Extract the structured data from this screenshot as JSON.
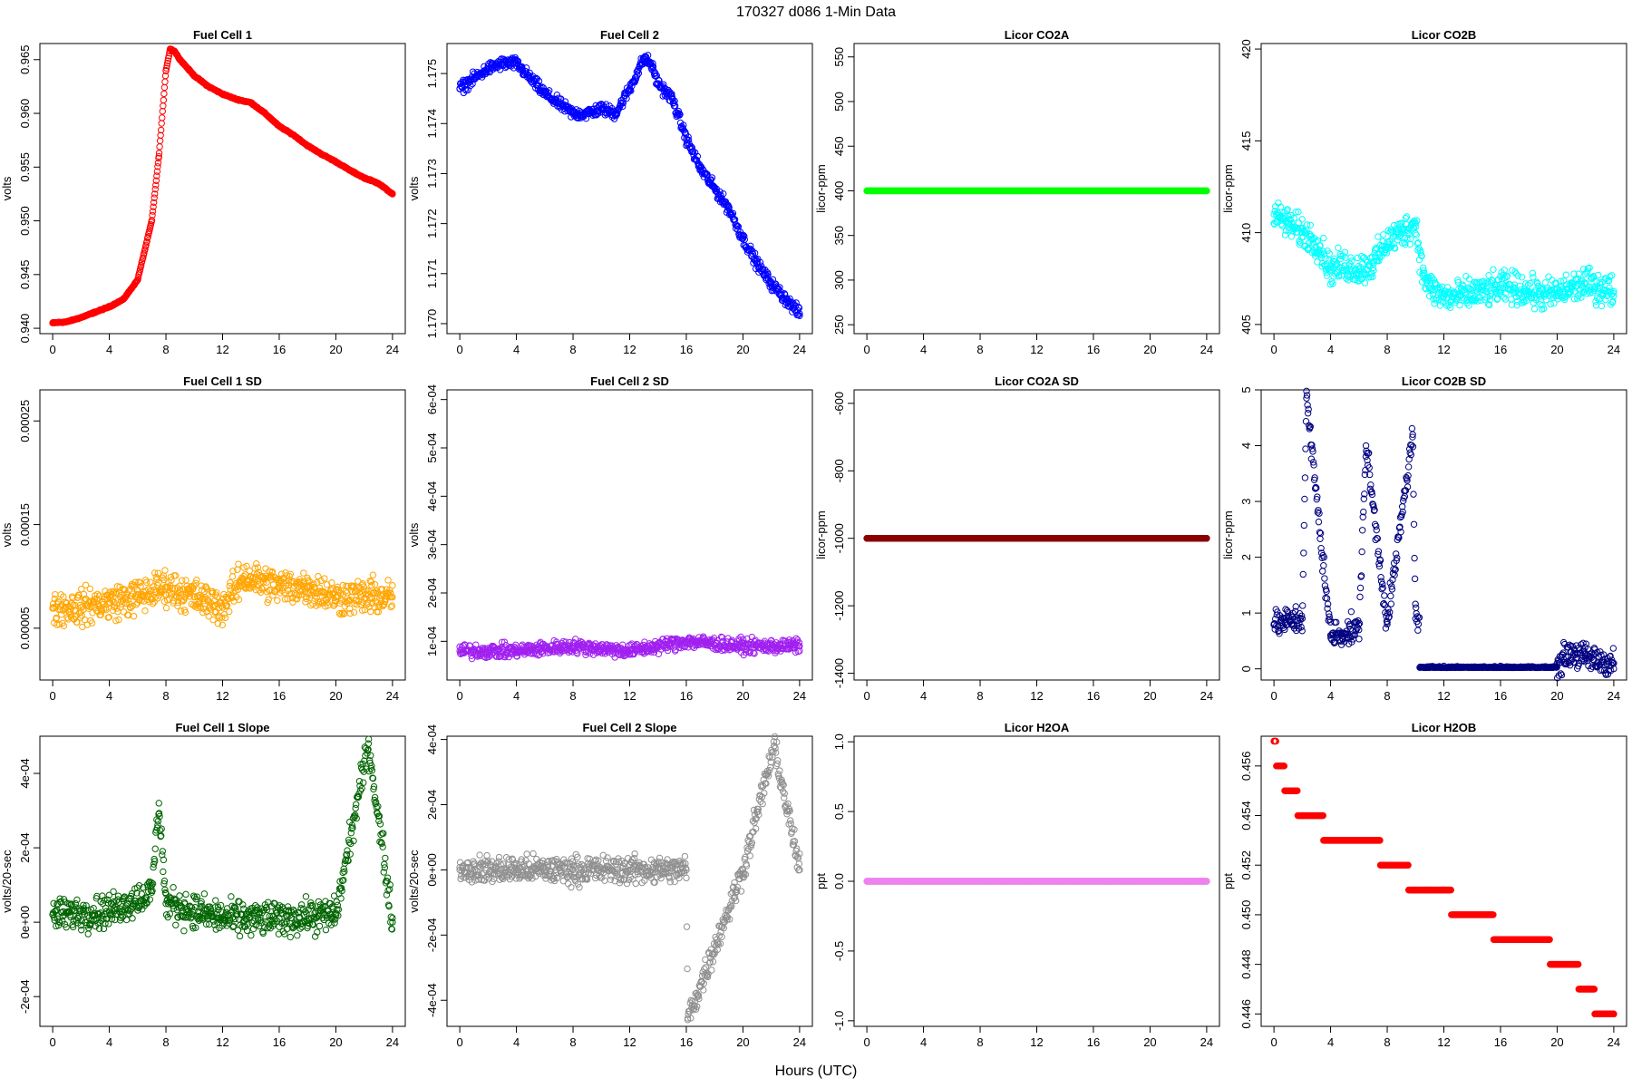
{
  "title": "170327   d086   1-Min Data",
  "xlabel": "Hours (UTC)",
  "chart_data": [
    {
      "key": "fc1",
      "type": "scatter",
      "title": "Fuel Cell 1",
      "ylabel": "volts",
      "color": "#ff0000",
      "xlim": [
        0,
        24
      ],
      "xticks": [
        "0",
        "4",
        "8",
        "12",
        "16",
        "20",
        "24"
      ],
      "ylim": [
        0.9395,
        0.9665
      ],
      "yticks": [
        "0.940",
        "0.945",
        "0.950",
        "0.955",
        "0.960",
        "0.965"
      ],
      "x": [
        0,
        1,
        2,
        3,
        4,
        5,
        6,
        7,
        7.5,
        8,
        8.3,
        8.6,
        9,
        10,
        11,
        12,
        13,
        14,
        15,
        16,
        17,
        18,
        19,
        20,
        21,
        22,
        23,
        24
      ],
      "y": [
        0.9405,
        0.9406,
        0.941,
        0.9415,
        0.942,
        0.9427,
        0.9445,
        0.95,
        0.956,
        0.964,
        0.966,
        0.9658,
        0.965,
        0.9635,
        0.9625,
        0.9618,
        0.9613,
        0.961,
        0.96,
        0.9588,
        0.958,
        0.957,
        0.9562,
        0.9555,
        0.9547,
        0.954,
        0.9535,
        0.9525
      ]
    },
    {
      "key": "fc2",
      "type": "scatter",
      "title": "Fuel Cell 2",
      "ylabel": "volts",
      "color": "#0000ff",
      "xlim": [
        0,
        24
      ],
      "xticks": [
        "0",
        "4",
        "8",
        "12",
        "16",
        "20",
        "24"
      ],
      "ylim": [
        1.1698,
        1.1756
      ],
      "yticks": [
        "1.170",
        "1.171",
        "1.172",
        "1.173",
        "1.174",
        "1.175"
      ],
      "x": [
        0,
        1,
        2,
        3,
        4,
        5,
        6,
        7,
        8,
        9,
        10,
        11,
        12,
        13,
        13.5,
        14,
        15,
        16,
        17,
        18,
        19,
        20,
        21,
        22,
        23,
        24
      ],
      "y": [
        1.1747,
        1.1749,
        1.1751,
        1.1752,
        1.1752,
        1.1749,
        1.1746,
        1.1744,
        1.1742,
        1.1742,
        1.1743,
        1.1742,
        1.1747,
        1.1753,
        1.1752,
        1.1748,
        1.1745,
        1.1737,
        1.1731,
        1.1727,
        1.1723,
        1.1717,
        1.1712,
        1.1708,
        1.1705,
        1.1702
      ]
    },
    {
      "key": "co2a",
      "type": "scatter",
      "title": "Licor CO2A",
      "ylabel": "licor-ppm",
      "color": "#00ff00",
      "xlim": [
        0,
        24
      ],
      "xticks": [
        "0",
        "4",
        "8",
        "12",
        "16",
        "20",
        "24"
      ],
      "ylim": [
        240,
        565
      ],
      "yticks": [
        "250",
        "300",
        "350",
        "400",
        "450",
        "500",
        "550"
      ],
      "x": [
        0,
        24
      ],
      "y": [
        400,
        400
      ]
    },
    {
      "key": "co2b",
      "type": "scatter",
      "title": "Licor CO2B",
      "ylabel": "licor-ppm",
      "color": "#00ffff",
      "xlim": [
        0,
        24
      ],
      "xticks": [
        "0",
        "4",
        "8",
        "12",
        "16",
        "20",
        "24"
      ],
      "ylim": [
        404.5,
        420.3
      ],
      "yticks": [
        "405",
        "410",
        "415",
        "420"
      ],
      "x": [
        0,
        1,
        2,
        3,
        4,
        5,
        6,
        7,
        8,
        9,
        10,
        10.5,
        11,
        12,
        13,
        14,
        15,
        16,
        17,
        18,
        19,
        20,
        21,
        22,
        23,
        24
      ],
      "y": [
        411,
        410.5,
        410,
        409.5,
        408,
        408.2,
        408,
        408.3,
        409.5,
        410,
        410.5,
        407.8,
        407,
        406.5,
        406.5,
        406.7,
        406.8,
        407,
        407,
        406.8,
        406.6,
        406.7,
        407,
        407.2,
        407,
        406.8
      ]
    },
    {
      "key": "fc1sd",
      "type": "scatter",
      "title": "Fuel Cell 1 SD",
      "ylabel": "volts",
      "color": "#ffa500",
      "xlim": [
        0,
        24
      ],
      "xticks": [
        "0",
        "4",
        "8",
        "12",
        "16",
        "20",
        "24"
      ],
      "ylim": [
        0,
        0.00028
      ],
      "yticks": [
        "0.00005",
        "0.00015",
        "0.00025"
      ],
      "x": [
        0,
        2,
        4,
        6,
        8,
        10,
        12,
        13.5,
        16,
        18,
        20,
        22.5,
        24
      ],
      "y": [
        7e-05,
        7e-05,
        7.5e-05,
        8e-05,
        9e-05,
        8e-05,
        7e-05,
        0.0001,
        9e-05,
        9e-05,
        8e-05,
        8e-05,
        8e-05
      ]
    },
    {
      "key": "fc2sd",
      "type": "scatter",
      "title": "Fuel Cell 2 SD",
      "ylabel": "volts",
      "color": "#a020f0",
      "xlim": [
        0,
        24
      ],
      "xticks": [
        "0",
        "4",
        "8",
        "12",
        "16",
        "20",
        "24"
      ],
      "ylim": [
        2e-05,
        0.00062
      ],
      "yticks": [
        "1e-04",
        "2e-04",
        "3e-04",
        "4e-04",
        "5e-04",
        "6e-04"
      ],
      "x": [
        0,
        4,
        8,
        12,
        16,
        20,
        24
      ],
      "y": [
        8e-05,
        8e-05,
        9e-05,
        8e-05,
        0.0001,
        9e-05,
        9e-05
      ]
    },
    {
      "key": "co2asd",
      "type": "scatter",
      "title": "Licor CO2A SD",
      "ylabel": "licor-ppm",
      "color": "#8b0000",
      "xlim": [
        0,
        24
      ],
      "xticks": [
        "0",
        "4",
        "8",
        "12",
        "16",
        "20",
        "24"
      ],
      "ylim": [
        -1420,
        -560
      ],
      "yticks": [
        "-1400",
        "-1200",
        "-1000",
        "-800",
        "-600"
      ],
      "x": [
        0,
        24
      ],
      "y": [
        -1000,
        -1000
      ]
    },
    {
      "key": "co2bsd",
      "type": "scatter",
      "title": "Licor CO2B SD",
      "ylabel": "licor-ppm",
      "color": "#000080",
      "xlim": [
        0,
        24
      ],
      "xticks": [
        "0",
        "4",
        "8",
        "12",
        "16",
        "20",
        "24"
      ],
      "ylim": [
        -0.2,
        5.0
      ],
      "yticks": [
        "0",
        "1",
        "2",
        "3",
        "4",
        "5"
      ],
      "x": [
        0,
        2,
        2.3,
        4,
        6,
        6.5,
        8,
        9.8,
        10,
        12,
        16,
        20,
        21,
        22,
        24
      ],
      "y": [
        0.8,
        0.9,
        4.85,
        0.6,
        0.7,
        4.0,
        0.8,
        4.2,
        0.9,
        0.05,
        0.05,
        0.1,
        0.3,
        0.2,
        0.1
      ]
    },
    {
      "key": "fc1slope",
      "type": "scatter",
      "title": "Fuel Cell 1 Slope",
      "ylabel": "volts/20-sec",
      "color": "#006400",
      "xlim": [
        0,
        24
      ],
      "xticks": [
        "0",
        "4",
        "8",
        "12",
        "16",
        "20",
        "24"
      ],
      "ylim": [
        -0.00028,
        0.0005
      ],
      "yticks": [
        "-2e-04",
        "0e+00",
        "2e-04",
        "4e-04"
      ],
      "x": [
        0,
        4,
        7,
        7.5,
        8,
        12,
        16,
        20,
        22.3,
        24
      ],
      "y": [
        2e-05,
        3e-05,
        8e-05,
        0.00032,
        5e-05,
        1e-05,
        1e-05,
        2e-05,
        0.00048,
        0
      ]
    },
    {
      "key": "fc2slope",
      "type": "scatter",
      "title": "Fuel Cell 2 Slope",
      "ylabel": "volts/20-sec",
      "color": "#909090",
      "xlim": [
        0,
        24
      ],
      "xticks": [
        "0",
        "4",
        "8",
        "12",
        "16",
        "20",
        "24"
      ],
      "ylim": [
        -0.00048,
        0.00041
      ],
      "yticks": [
        "-4e-04",
        "-2e-04",
        "0e+00",
        "2e-04",
        "4e-04"
      ],
      "x": [
        0,
        4,
        8,
        12,
        16,
        16.1,
        20,
        22.2,
        24
      ],
      "y": [
        0,
        0,
        0,
        0,
        0,
        -0.00046,
        0,
        0.00038,
        0
      ]
    },
    {
      "key": "h2oa",
      "type": "scatter",
      "title": "Licor H2OA",
      "ylabel": "ppt",
      "color": "#ee82ee",
      "xlim": [
        0,
        24
      ],
      "xticks": [
        "0",
        "4",
        "8",
        "12",
        "16",
        "20",
        "24"
      ],
      "ylim": [
        -1.04,
        1.04
      ],
      "yticks": [
        "-1.0",
        "-0.5",
        "0.0",
        "0.5",
        "1.0"
      ],
      "x": [
        0,
        24
      ],
      "y": [
        0,
        0
      ]
    },
    {
      "key": "h2ob",
      "type": "scatter",
      "title": "Licor H2OB",
      "ylabel": "ppt",
      "color": "#ff0000",
      "xlim": [
        0,
        24
      ],
      "xticks": [
        "0",
        "4",
        "8",
        "12",
        "16",
        "20",
        "24"
      ],
      "ylim": [
        0.4455,
        0.4572
      ],
      "yticks": [
        "0.446",
        "0.448",
        "0.450",
        "0.452",
        "0.454",
        "0.456"
      ],
      "x": [
        0,
        0.3,
        0.5,
        1,
        1.3,
        2,
        3,
        4,
        5,
        6,
        7,
        8,
        9,
        10,
        11,
        12,
        13,
        14,
        15,
        16,
        17,
        18,
        19,
        20,
        21,
        22,
        22.3,
        23,
        24
      ],
      "y": [
        0.457,
        0.456,
        0.456,
        0.455,
        0.455,
        0.454,
        0.454,
        0.453,
        0.453,
        0.453,
        0.453,
        0.452,
        0.452,
        0.451,
        0.451,
        0.451,
        0.45,
        0.45,
        0.45,
        0.449,
        0.449,
        0.449,
        0.449,
        0.448,
        0.448,
        0.447,
        0.447,
        0.446,
        0.446
      ]
    }
  ]
}
